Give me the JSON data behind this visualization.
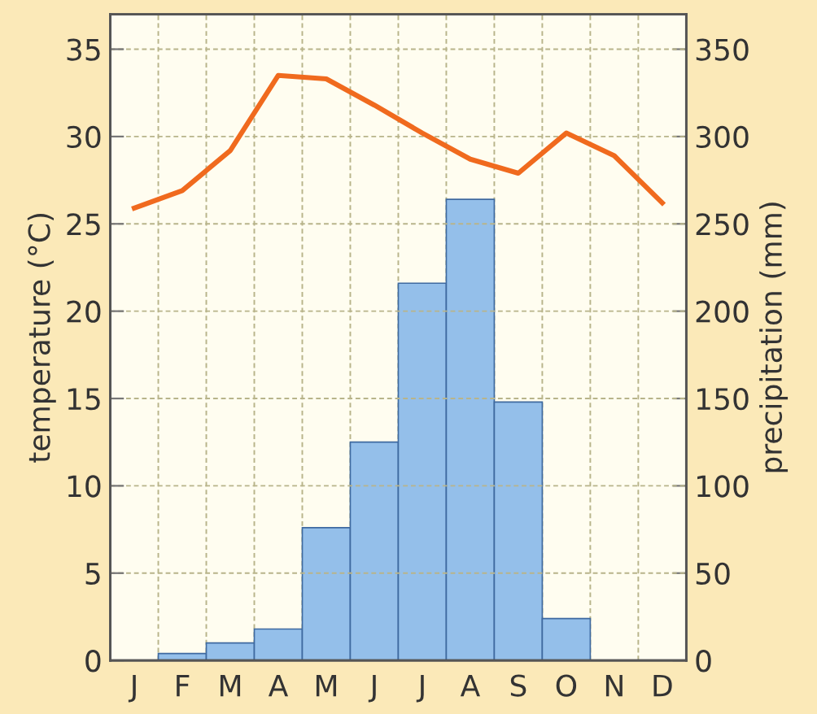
{
  "chart_data": {
    "type": "bar",
    "ylabel": "temperature (°C)",
    "y2label": "precipitation (mm)",
    "categories": [
      "J",
      "F",
      "M",
      "A",
      "M",
      "J",
      "J",
      "A",
      "S",
      "O",
      "N",
      "D"
    ],
    "ylim": [
      0,
      37
    ],
    "yticks": [
      0,
      5,
      10,
      15,
      20,
      25,
      30,
      35
    ],
    "y2lim": [
      0,
      370
    ],
    "y2ticks": [
      0,
      50,
      100,
      150,
      200,
      250,
      300,
      350
    ],
    "grid": true,
    "series": [
      {
        "axis": "y2",
        "color": "#94bfea",
        "values": [
          0,
          4,
          10,
          18,
          76,
          125,
          216,
          264,
          148,
          24,
          0,
          0
        ]
      },
      {
        "type": "line",
        "axis": "y",
        "color": "#f06a1e",
        "line_style": "solid",
        "values": [
          25.9,
          26.9,
          29.2,
          33.5,
          33.3,
          31.8,
          30.2,
          28.7,
          27.9,
          30.2,
          28.9,
          26.2
        ]
      }
    ]
  }
}
